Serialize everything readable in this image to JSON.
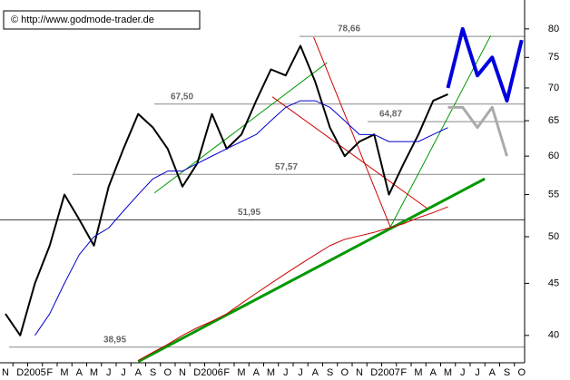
{
  "chart_data": {
    "type": "line",
    "title": "© http://www.godmode-trader.de",
    "categories": [
      "N",
      "D",
      "2005",
      "F",
      "M",
      "A",
      "M",
      "J",
      "J",
      "A",
      "S",
      "O",
      "N",
      "D",
      "2006",
      "F",
      "M",
      "A",
      "M",
      "J",
      "J",
      "A",
      "S",
      "O",
      "N",
      "D",
      "2007",
      "F",
      "M",
      "A",
      "M",
      "J",
      "J",
      "A",
      "S",
      "O"
    ],
    "log_scale": true,
    "ylim": [
      37.6,
      85.4
    ],
    "yticks": [
      40,
      45,
      50,
      55,
      60,
      65,
      70,
      75,
      80
    ],
    "series": [
      {
        "color": "#000000",
        "width": 2,
        "values": [
          42,
          40,
          45,
          49,
          55,
          52,
          49,
          56,
          61,
          66,
          64,
          61,
          56,
          59,
          66,
          61,
          63,
          68,
          73,
          72,
          77,
          71,
          64,
          60,
          62,
          63,
          55,
          59,
          63,
          68,
          69,
          null,
          null,
          null,
          null,
          null
        ]
      },
      {
        "color": "#0000cc",
        "width": 1,
        "values": [
          null,
          null,
          40,
          42,
          45,
          48,
          50,
          51,
          53,
          55,
          57,
          58,
          58,
          59,
          60,
          61,
          62,
          63,
          65,
          67,
          68,
          68,
          67,
          65,
          63,
          63,
          62,
          62,
          62,
          63,
          64,
          null,
          null,
          null,
          null,
          null
        ]
      },
      {
        "color": "#cc0000",
        "width": 1,
        "values": [
          null,
          null,
          null,
          null,
          null,
          null,
          null,
          null,
          null,
          37.8,
          38.5,
          39.2,
          40,
          40.7,
          41.3,
          42,
          43,
          44,
          45,
          46,
          47,
          48,
          49,
          49.7,
          50.1,
          50.5,
          51,
          51.5,
          52.2,
          52.8,
          53.5,
          null,
          null,
          null,
          null,
          null
        ]
      },
      {
        "color": "#0000dd",
        "width": 4,
        "values": [
          null,
          null,
          null,
          null,
          null,
          null,
          null,
          null,
          null,
          null,
          null,
          null,
          null,
          null,
          null,
          null,
          null,
          null,
          null,
          null,
          null,
          null,
          null,
          null,
          null,
          null,
          null,
          null,
          null,
          null,
          70,
          80,
          72,
          75,
          68,
          78
        ]
      },
      {
        "color": "#aaaaaa",
        "width": 3,
        "values": [
          null,
          null,
          null,
          null,
          null,
          null,
          null,
          null,
          null,
          null,
          null,
          null,
          null,
          null,
          null,
          null,
          null,
          null,
          null,
          null,
          null,
          null,
          null,
          null,
          null,
          null,
          null,
          null,
          null,
          null,
          67,
          67,
          64,
          67,
          60,
          null
        ]
      }
    ],
    "trendlines": [
      {
        "color": "#009900",
        "width": 3,
        "x": [
          9,
          32.5
        ],
        "values": [
          37.7,
          57
        ]
      },
      {
        "color": "#009900",
        "width": 1,
        "x": [
          10.1,
          21.8
        ],
        "values": [
          55.2,
          74.1
        ]
      },
      {
        "color": "#009900",
        "width": 1,
        "x": [
          26.1,
          32.9
        ],
        "values": [
          51.1,
          78.8
        ]
      },
      {
        "color": "#cc0000",
        "width": 1,
        "x": [
          20.9,
          26.1
        ],
        "values": [
          78.5,
          51.1
        ]
      },
      {
        "color": "#cc0000",
        "width": 1,
        "x": [
          18.1,
          28.6
        ],
        "values": [
          68.6,
          53.3
        ]
      }
    ],
    "levels": [
      {
        "value": 78.66,
        "label": "78,66"
      },
      {
        "value": 67.5,
        "label": "67,50"
      },
      {
        "value": 64.87,
        "label": "64,87"
      },
      {
        "value": 57.57,
        "label": "57,57"
      },
      {
        "value": 51.95,
        "label": "51,95"
      },
      {
        "value": 38.95,
        "label": "38,95"
      }
    ]
  }
}
